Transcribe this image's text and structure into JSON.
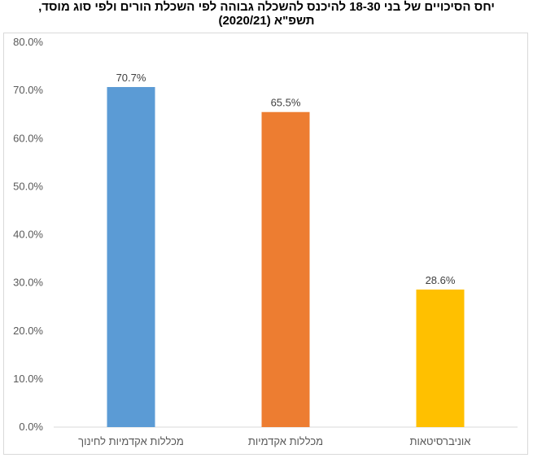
{
  "chart_data": {
    "type": "bar",
    "title_line1": "יחס הסיכויים של בני 18-30 להיכנס להשכלה גבוהה לפי השכלת הורים ולפי סוג מוסד,",
    "title_line2": "תשפ\"א (2020/21)",
    "categories": [
      "מכללות אקדמיות לחינוך",
      "מכללות אקדמיות",
      "אוניברסיטאות"
    ],
    "values": [
      70.7,
      65.5,
      28.6
    ],
    "value_labels": [
      "70.7%",
      "65.5%",
      "28.6%"
    ],
    "colors": [
      "#5b9bd5",
      "#ed7d31",
      "#ffc000"
    ],
    "ylim": [
      0,
      80
    ],
    "yticks": [
      "0.0%",
      "10.0%",
      "20.0%",
      "30.0%",
      "40.0%",
      "50.0%",
      "60.0%",
      "70.0%",
      "80.0%"
    ],
    "xlabel": "",
    "ylabel": "",
    "grid": false,
    "legend": "none"
  }
}
